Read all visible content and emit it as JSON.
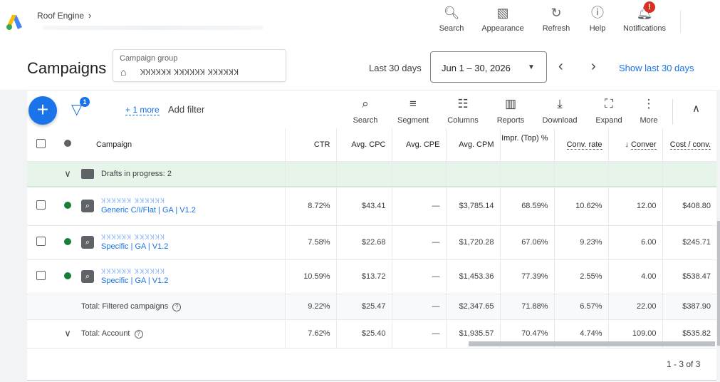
{
  "app": {
    "account_name": "Roof Engine",
    "brand_colors": {
      "blue": "#1a73e8",
      "green": "#188038",
      "yellow": "#fbbc04",
      "red": "#d93025"
    }
  },
  "toolbar": {
    "items": [
      {
        "label": "Search",
        "icon": "search-icon"
      },
      {
        "label": "Appearance",
        "icon": "appearance-icon"
      },
      {
        "label": "Refresh",
        "icon": "refresh-icon"
      },
      {
        "label": "Help",
        "icon": "help-icon"
      },
      {
        "label": "Notifications",
        "icon": "notifications-icon",
        "badge": "!"
      }
    ]
  },
  "header": {
    "title": "Campaigns",
    "campaign_group_label": "Campaign group",
    "campaign_group_value": "ꞰꞰꞰꞰꞰꞰ ꞰꞰꞰꞰꞰꞰ ꞰꞰꞰꞰꞰꞰ",
    "date_range_label": "Last 30 days",
    "date_range_value": "Jun 1 – 30, 2026",
    "show_last_link": "Show last 30 days"
  },
  "filters": {
    "badge": "1",
    "more": "+ 1 more",
    "add": "Add filter"
  },
  "table_tools": [
    {
      "label": "Search",
      "icon": "search-icon"
    },
    {
      "label": "Segment",
      "icon": "segment-icon"
    },
    {
      "label": "Columns",
      "icon": "columns-icon"
    },
    {
      "label": "Reports",
      "icon": "reports-icon"
    },
    {
      "label": "Download",
      "icon": "download-icon"
    },
    {
      "label": "Expand",
      "icon": "expand-icon"
    },
    {
      "label": "More",
      "icon": "more-icon"
    }
  ],
  "table": {
    "columns": [
      "Campaign",
      "CTR",
      "Avg. CPC",
      "Avg. CPE",
      "Avg. CPM",
      "Impr. (Top) %",
      "Conv. rate",
      "Conver",
      "Cost / conv."
    ],
    "drafts": "Drafts in progress: 2",
    "rows": [
      {
        "status_color": "#188038",
        "name_blur": "ꞰꞰꞰꞰꞰꞰ ꞰꞰꞰꞰꞰꞰ",
        "name": "Generic C/I/Flat | GA | V1.2",
        "ctr": "8.72%",
        "avg_cpc": "$43.41",
        "avg_cpe": "—",
        "avg_cpm": "$3,785.14",
        "impr_top": "68.59%",
        "conv_rate": "10.62%",
        "conversions": "12.00",
        "cost_conv": "$408.80"
      },
      {
        "status_color": "#188038",
        "name_blur": "ꞰꞰꞰꞰꞰꞰ ꞰꞰꞰꞰꞰꞰ",
        "name": "Specific | GA | V1.2",
        "ctr": "7.58%",
        "avg_cpc": "$22.68",
        "avg_cpe": "—",
        "avg_cpm": "$1,720.28",
        "impr_top": "67.06%",
        "conv_rate": "9.23%",
        "conversions": "6.00",
        "cost_conv": "$245.71"
      },
      {
        "status_color": "#188038",
        "name_blur": "ꞰꞰꞰꞰꞰꞰ ꞰꞰꞰꞰꞰꞰ",
        "name": "Specific | GA | V1.2",
        "ctr": "10.59%",
        "avg_cpc": "$13.72",
        "avg_cpe": "—",
        "avg_cpm": "$1,453.36",
        "impr_top": "77.39%",
        "conv_rate": "2.55%",
        "conversions": "4.00",
        "cost_conv": "$538.47"
      }
    ],
    "total_filtered": {
      "label": "Total: Filtered campaigns",
      "ctr": "9.22%",
      "avg_cpc": "$25.47",
      "avg_cpe": "—",
      "avg_cpm": "$2,347.65",
      "impr_top": "71.88%",
      "conv_rate": "6.57%",
      "conversions": "22.00",
      "cost_conv": "$387.90"
    },
    "total_account": {
      "label": "Total: Account",
      "ctr": "7.62%",
      "avg_cpc": "$25.40",
      "avg_cpe": "—",
      "avg_cpm": "$1,935.57",
      "impr_top": "70.47%",
      "conv_rate": "4.74%",
      "conversions": "109.00",
      "cost_conv": "$535.82"
    },
    "pagination": "1 - 3 of 3"
  }
}
